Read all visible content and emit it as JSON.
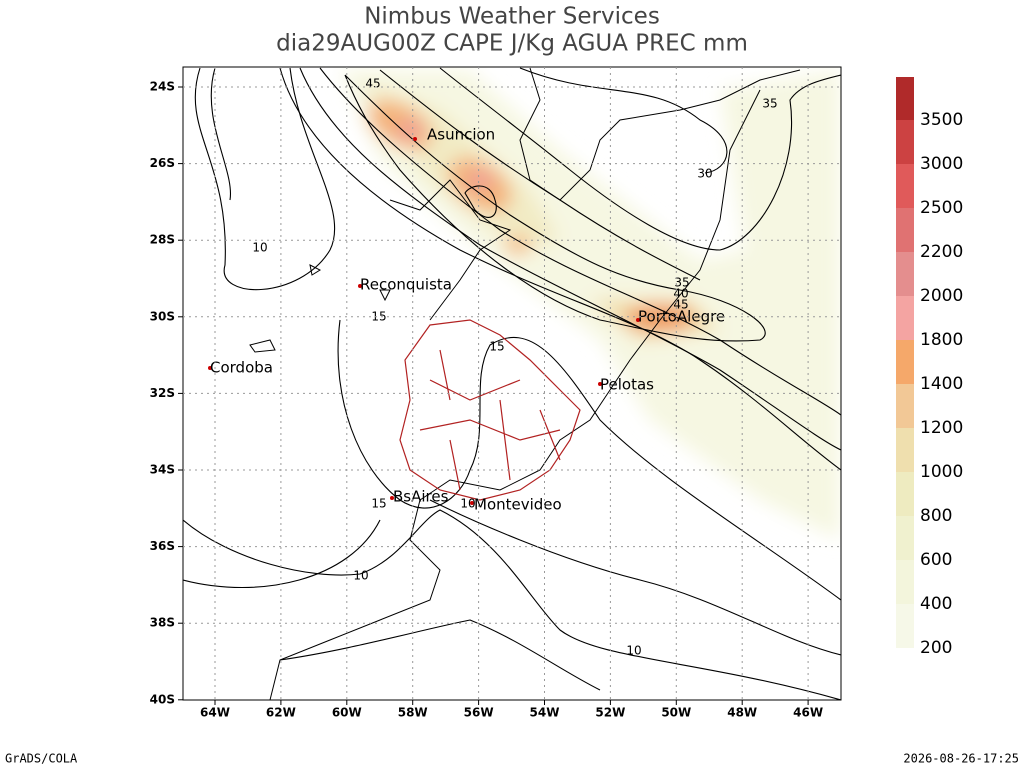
{
  "header": {
    "title": "Nimbus Weather Services",
    "subtitle": "dia29AUG00Z CAPE J/Kg AGUA PREC mm"
  },
  "map": {
    "lat_labels": [
      "24S",
      "26S",
      "28S",
      "30S",
      "32S",
      "34S",
      "36S",
      "38S",
      "40S"
    ],
    "lon_labels": [
      "64W",
      "62W",
      "60W",
      "58W",
      "56W",
      "54W",
      "52W",
      "50W",
      "48W",
      "46W"
    ],
    "cities": [
      "Asuncion",
      "Reconquista",
      "PortoAlegre",
      "Cordoba",
      "Pelotas",
      "BsAires",
      "Montevideo"
    ],
    "contour_labels": [
      "45",
      "35",
      "30",
      "10",
      "15",
      "35",
      "40",
      "45",
      "15",
      "15",
      "10",
      "10",
      "10"
    ]
  },
  "colorbar": {
    "labels": [
      200,
      400,
      600,
      800,
      1000,
      1200,
      1400,
      1800,
      2000,
      2200,
      2500,
      3000,
      3500
    ],
    "colors": [
      "#f6f8e8",
      "#f3f5dc",
      "#f0f1cf",
      "#eeebc0",
      "#efdfae",
      "#f2c896",
      "#f5a86a",
      "#f4a4a2",
      "#e48e8e",
      "#e07272",
      "#e05a5a",
      "#cc4242",
      "#b02a2a"
    ]
  },
  "footer": {
    "left": "GrADS/COLA",
    "right": "2026-08-26-17:25"
  }
}
